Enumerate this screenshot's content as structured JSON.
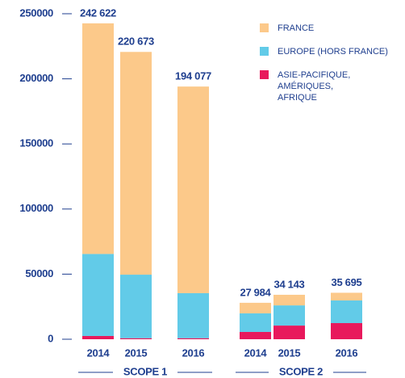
{
  "chart_data": {
    "type": "stacked_bar",
    "categories": [
      "2014",
      "2015",
      "2016",
      "2014",
      "2015",
      "2016"
    ],
    "groups": [
      "SCOPE 1",
      "SCOPE 2"
    ],
    "series": [
      {
        "name": "FRANCE",
        "color": "#fcc98a",
        "values": [
          177122,
          171073,
          158677,
          8084,
          8143,
          5895
        ]
      },
      {
        "name": "EUROPE (HORS FRANCE)",
        "color": "#62cbe8",
        "values": [
          63000,
          48800,
          34600,
          14300,
          15500,
          17400
        ]
      },
      {
        "name": "ASIE-PACIFIQUE, AMÉRIQUES, AFRIQUE",
        "color": "#e8195c",
        "values": [
          2500,
          800,
          800,
          5600,
          10500,
          12400
        ]
      }
    ],
    "totals": [
      242622,
      220673,
      194077,
      27984,
      34143,
      35695
    ],
    "total_labels": [
      "242 622",
      "220 673",
      "194 077",
      "27 984",
      "34 143",
      "35 695"
    ],
    "ylim": [
      0,
      250000
    ],
    "yticks": [
      0,
      50000,
      100000,
      150000,
      200000,
      250000
    ]
  }
}
